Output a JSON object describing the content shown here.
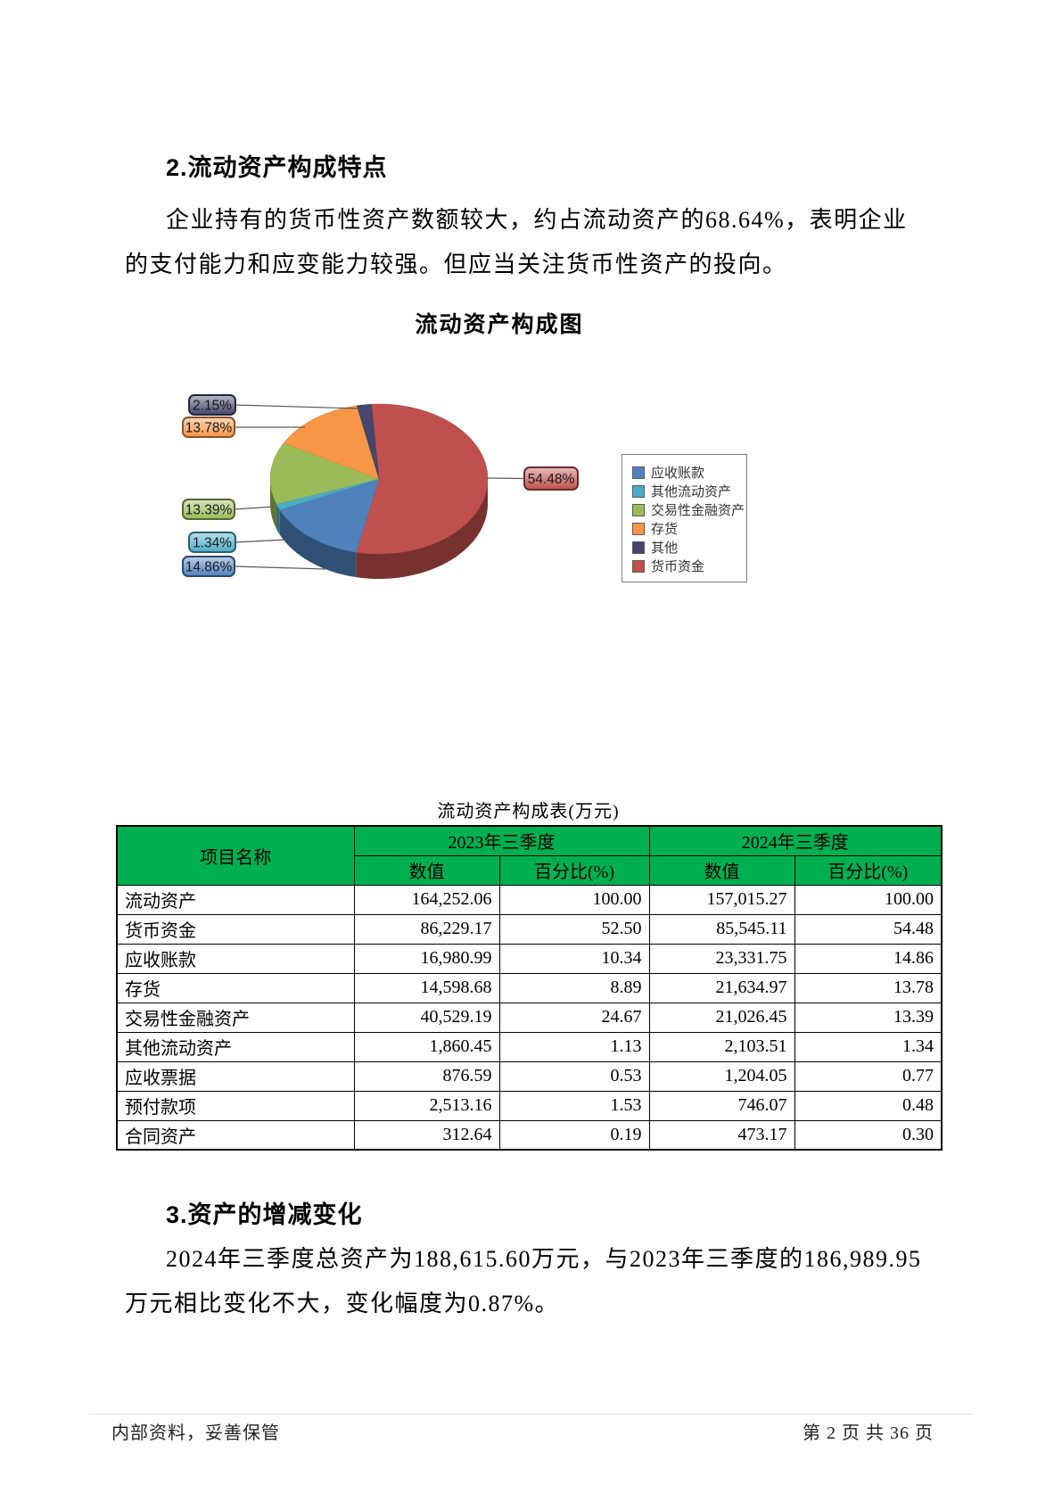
{
  "page": {
    "section2_heading": "2.流动资产构成特点",
    "para2_lines": [
      "企业持有的货币性资产数额较大，约占流动资产的68.64%，表明企业",
      "的支付能力和应变能力较强。但应当关注货币性资产的投向。"
    ],
    "section3_heading": "3.资产的增减变化",
    "para3_lines": [
      "2024年三季度总资产为188,615.60万元，与2023年三季度的186,989.95",
      "万元相比变化不大，变化幅度为0.87%。"
    ],
    "footer_left": "内部资料，妥善保管",
    "footer_right": "第 2 页  共 36 页"
  },
  "chart_data": {
    "type": "pie",
    "style": "3d-pie",
    "title": "流动资产构成图",
    "legend_position": "right",
    "start": "货币资金 begins near 12 o'clock, slices run clockwise",
    "slices": [
      {
        "label": "应收账款",
        "value": 14.86,
        "pct_label": "14.86%",
        "color": "#4F81BD"
      },
      {
        "label": "其他流动资产",
        "value": 1.34,
        "pct_label": "1.34%",
        "color": "#4BACC6"
      },
      {
        "label": "交易性金融资产",
        "value": 13.39,
        "pct_label": "13.39%",
        "color": "#9BBB59"
      },
      {
        "label": "存货",
        "value": 13.78,
        "pct_label": "13.78%",
        "color": "#F79646"
      },
      {
        "label": "其他",
        "value": 2.15,
        "pct_label": "2.15%",
        "color": "#45466B"
      },
      {
        "label": "货币资金",
        "value": 54.48,
        "pct_label": "54.48%",
        "color": "#C0504D"
      }
    ]
  },
  "table": {
    "title": "流动资产构成表(万元)",
    "header_bg": "#00B050",
    "corner_header": "项目名称",
    "group_headers": [
      "2023年三季度",
      "2024年三季度"
    ],
    "sub_headers": [
      "数值",
      "百分比(%)",
      "数值",
      "百分比(%)"
    ],
    "rows": [
      [
        "流动资产",
        "164,252.06",
        "100.00",
        "157,015.27",
        "100.00"
      ],
      [
        "货币资金",
        "86,229.17",
        "52.50",
        "85,545.11",
        "54.48"
      ],
      [
        "应收账款",
        "16,980.99",
        "10.34",
        "23,331.75",
        "14.86"
      ],
      [
        "存货",
        "14,598.68",
        "8.89",
        "21,634.97",
        "13.78"
      ],
      [
        "交易性金融资产",
        "40,529.19",
        "24.67",
        "21,026.45",
        "13.39"
      ],
      [
        "其他流动资产",
        "1,860.45",
        "1.13",
        "2,103.51",
        "1.34"
      ],
      [
        "应收票据",
        "876.59",
        "0.53",
        "1,204.05",
        "0.77"
      ],
      [
        "预付款项",
        "2,513.16",
        "1.53",
        "746.07",
        "0.48"
      ],
      [
        "合同资产",
        "312.64",
        "0.19",
        "473.17",
        "0.30"
      ]
    ]
  }
}
